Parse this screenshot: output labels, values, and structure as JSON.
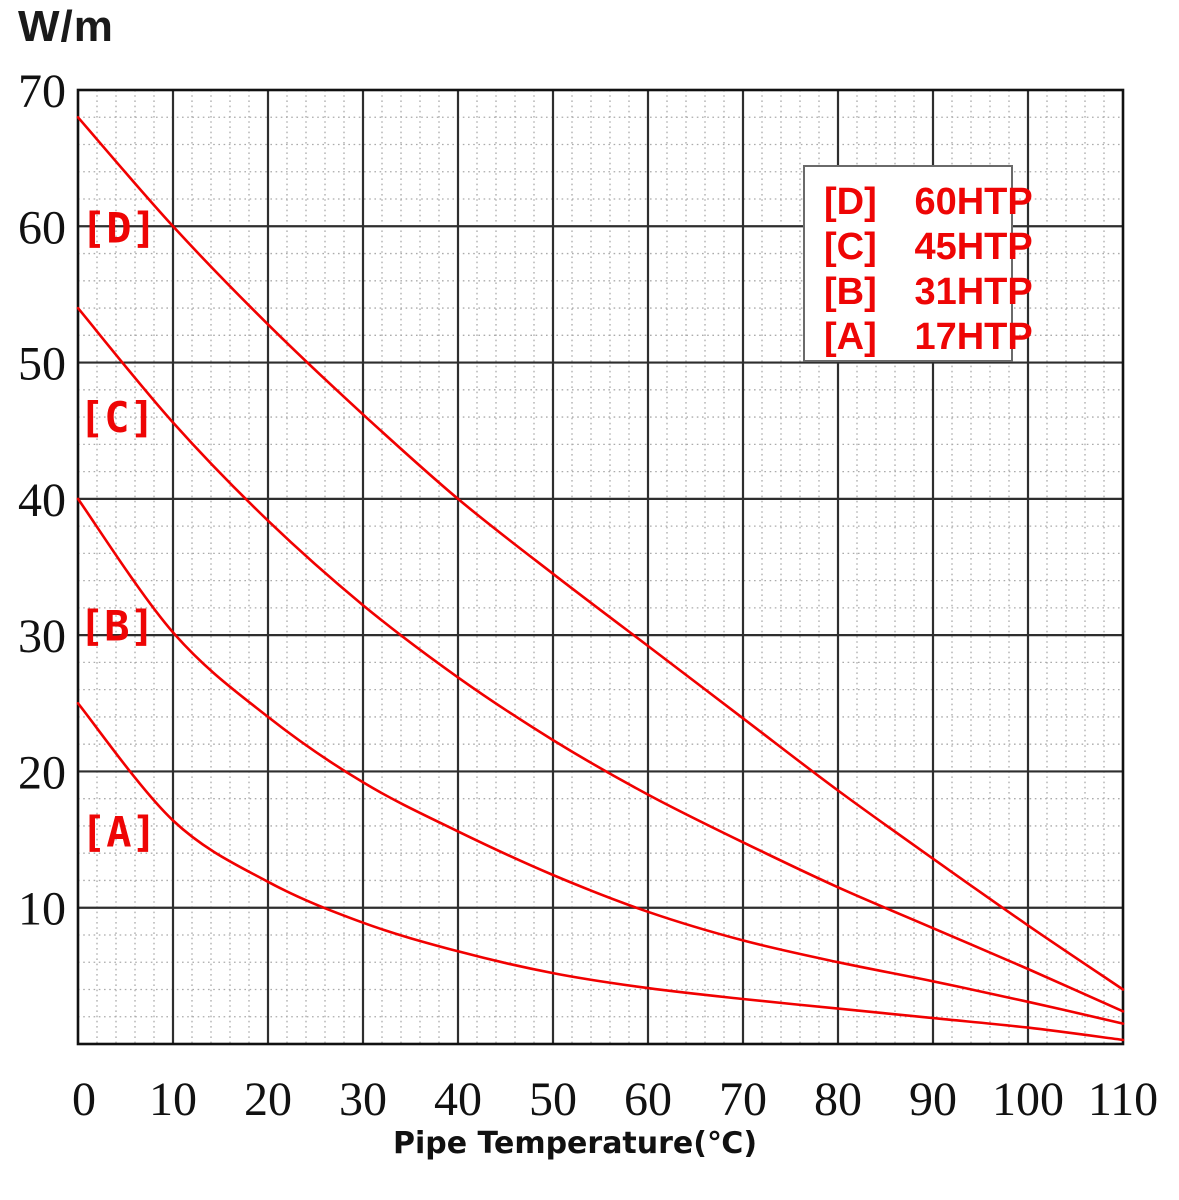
{
  "chart": {
    "y_unit": "W/m",
    "x_title": "Pipe Temperature(℃)"
  },
  "legend": {
    "position": "top-right",
    "items": [
      {
        "key": "[D]",
        "model": "60HTP"
      },
      {
        "key": "[C]",
        "model": "45HTP"
      },
      {
        "key": "[B]",
        "model": "31HTP"
      },
      {
        "key": "[A]",
        "model": "17HTP"
      }
    ]
  },
  "colors": {
    "curve": "#f10000",
    "curve_label": "#ee0505",
    "legend_text": "#ee0505",
    "grid_major": "#2e2e2e",
    "grid_minor": "#ababab",
    "plot_border": "#111111",
    "tick_text": "#111111"
  },
  "chart_data": {
    "type": "line",
    "title": "",
    "xlabel": "Pipe Temperature(℃)",
    "ylabel": "W/m",
    "xlim": [
      0,
      110
    ],
    "ylim": [
      0,
      70
    ],
    "x_ticks": [
      0,
      10,
      20,
      30,
      40,
      50,
      60,
      70,
      80,
      90,
      100,
      110
    ],
    "y_ticks": [
      10,
      20,
      30,
      40,
      50,
      60,
      70
    ],
    "grid": "major-solid, minor-dotted",
    "grid_minor_step": 2,
    "legend_position": "top-right",
    "x": [
      0,
      10,
      20,
      30,
      40,
      50,
      60,
      70,
      80,
      90,
      100,
      110
    ],
    "series": [
      {
        "name": "60HTP",
        "tag": "[D]",
        "label_pos": {
          "x": 4.3,
          "y": 59.9
        },
        "values": [
          68,
          60,
          52.8,
          46.2,
          40,
          34.5,
          29.2,
          23.9,
          18.6,
          13.6,
          8.7,
          4.0
        ]
      },
      {
        "name": "45HTP",
        "tag": "[C]",
        "label_pos": {
          "x": 4.1,
          "y": 46.0
        },
        "values": [
          54,
          45.6,
          38.4,
          32.2,
          26.9,
          22.3,
          18.3,
          14.8,
          11.5,
          8.5,
          5.5,
          2.4
        ]
      },
      {
        "name": "31HTP",
        "tag": "[B]",
        "label_pos": {
          "x": 4.1,
          "y": 30.7
        },
        "values": [
          40,
          30.2,
          24,
          19.2,
          15.6,
          12.4,
          9.7,
          7.6,
          6.0,
          4.6,
          3.1,
          1.5
        ]
      },
      {
        "name": "17HTP",
        "tag": "[A]",
        "label_pos": {
          "x": 4.3,
          "y": 15.6
        },
        "values": [
          25,
          16.4,
          11.9,
          8.9,
          6.8,
          5.2,
          4.1,
          3.3,
          2.6,
          1.9,
          1.2,
          0.3
        ]
      }
    ]
  }
}
